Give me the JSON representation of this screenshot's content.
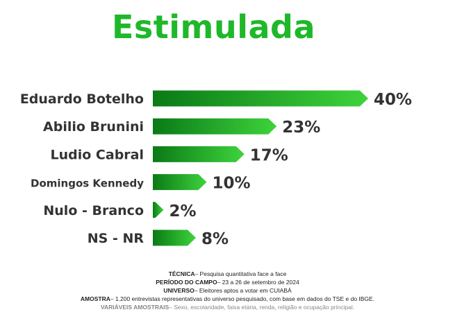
{
  "title": "Estimulada",
  "chart_data": {
    "type": "bar",
    "orientation": "horizontal",
    "title": "Estimulada",
    "categories": [
      "Eduardo Botelho",
      "Abilio Brunini",
      "Ludio Cabral",
      "Domingos Kennedy",
      "Nulo - Branco",
      "NS - NR"
    ],
    "values": [
      40,
      23,
      17,
      10,
      2,
      8
    ],
    "value_labels": [
      "40%",
      "23%",
      "17%",
      "10%",
      "2%",
      "8%"
    ],
    "bar_color_dark": "#0a7a16",
    "bar_color_light": "#3ed33c",
    "grid": false,
    "legend": "none"
  },
  "notes": [
    {
      "key": "TÉCNICA",
      "text": "– Pesquisa quantitativa face a face"
    },
    {
      "key": "PERÍODO DO CAMPO",
      "text": "– 23 a 26 de setembro de 2024"
    },
    {
      "key": "UNIVERSO",
      "text": "– Eleitores aptos a votar em CUIABÁ"
    },
    {
      "key": "AMOSTRA",
      "text": "– 1.200 entrevistas representativas do universo pesquisado, com base em dados do TSE e do IBGE."
    },
    {
      "key": "VARIÁVEIS AMOSTRAIS",
      "text": "– Sexo, escolaridade, faixa etária, renda, religião e ocupação principal."
    }
  ]
}
